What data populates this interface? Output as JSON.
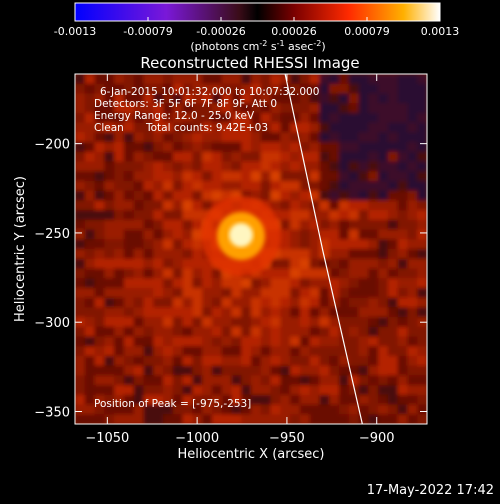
{
  "colorbar": {
    "ticks": [
      "-0.0013",
      "-0.00079",
      "-0.00026",
      "0.00026",
      "0.00079",
      "0.0013"
    ],
    "units_base": "(photons cm",
    "units_exp1": "-2",
    "units_mid": " s",
    "units_exp2": "-1",
    "units_end": " asec",
    "units_exp3": "-2",
    "units_close": ")"
  },
  "chart_data": {
    "type": "heatmap",
    "title": "Reconstructed RHESSI Image",
    "xlabel": "Heliocentric X (arcsec)",
    "ylabel": "Heliocentric Y (arcsec)",
    "xlim": [
      -1068,
      -872
    ],
    "ylim": [
      -357,
      -161
    ],
    "x_ticks": [
      -1050,
      -1000,
      -950,
      -900
    ],
    "x_tick_labels": [
      "−1050",
      "−1000",
      "−950",
      "−900"
    ],
    "y_ticks": [
      -200,
      -250,
      -300,
      -350
    ],
    "y_tick_labels": [
      "−200",
      "−250",
      "−300",
      "−350"
    ],
    "peak": [
      -975,
      -253
    ],
    "annotations": {
      "time": "6-Jan-2015 10:01:32.000 to 10:07:32.000",
      "detectors": "Detectors: 3F 5F 6F 7F 8F 9F, Att 0",
      "energy": "Energy Range: 12.0 - 25.0 keV",
      "clean_label": "Clean",
      "counts": "Total counts: 9.42E+03",
      "peak_text": "Position of Peak = [-975,-253]"
    },
    "limb": [
      [
        -951,
        -161
      ],
      [
        -930,
        -260
      ],
      [
        -908,
        -357
      ]
    ]
  },
  "footer": {
    "timestamp": "17-May-2022 17:42"
  }
}
